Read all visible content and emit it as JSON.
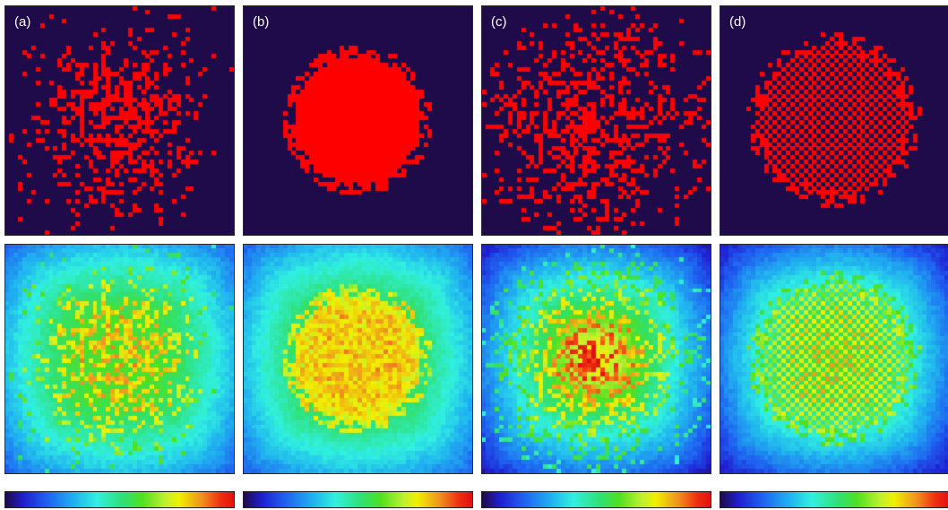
{
  "panels": [
    {
      "label": "(a)",
      "pattern": "random-scatter"
    },
    {
      "label": "(b)",
      "pattern": "dense-disk"
    },
    {
      "label": "(c)",
      "pattern": "sparse-random"
    },
    {
      "label": "(d)",
      "pattern": "checkerboard-disk"
    }
  ],
  "colors": {
    "background": "#1f0a4a",
    "occupied": "#ff0000",
    "colormap": "jet"
  }
}
